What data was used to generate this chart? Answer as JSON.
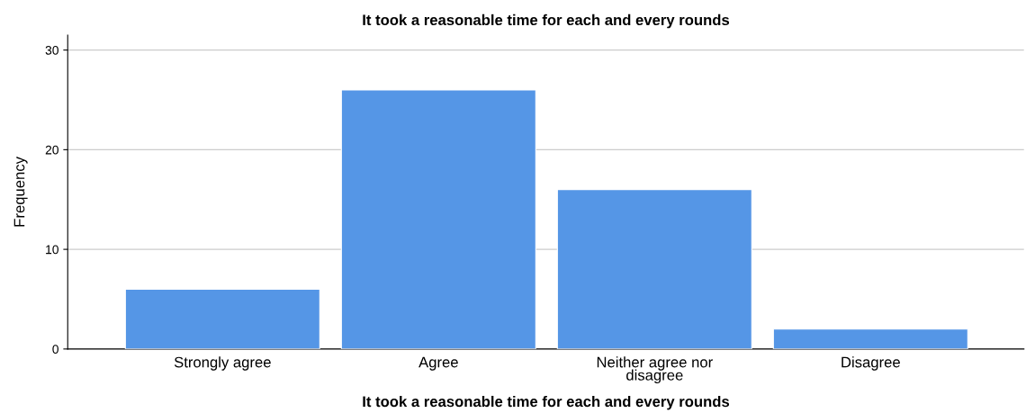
{
  "chart_data": {
    "type": "bar",
    "title": "It took a reasonable time for each and every rounds",
    "xlabel": "It took a reasonable time for each and every rounds",
    "ylabel": "Frequency",
    "categories": [
      "Strongly agree",
      "Agree",
      "Neither agree nor\ndisagree",
      "Disagree"
    ],
    "values": [
      6,
      26,
      16,
      2
    ],
    "color": "#5596e6",
    "ylim": [
      0,
      31.5
    ],
    "yticks": [
      0,
      10,
      20,
      30
    ],
    "grid": "y",
    "legend": false
  }
}
